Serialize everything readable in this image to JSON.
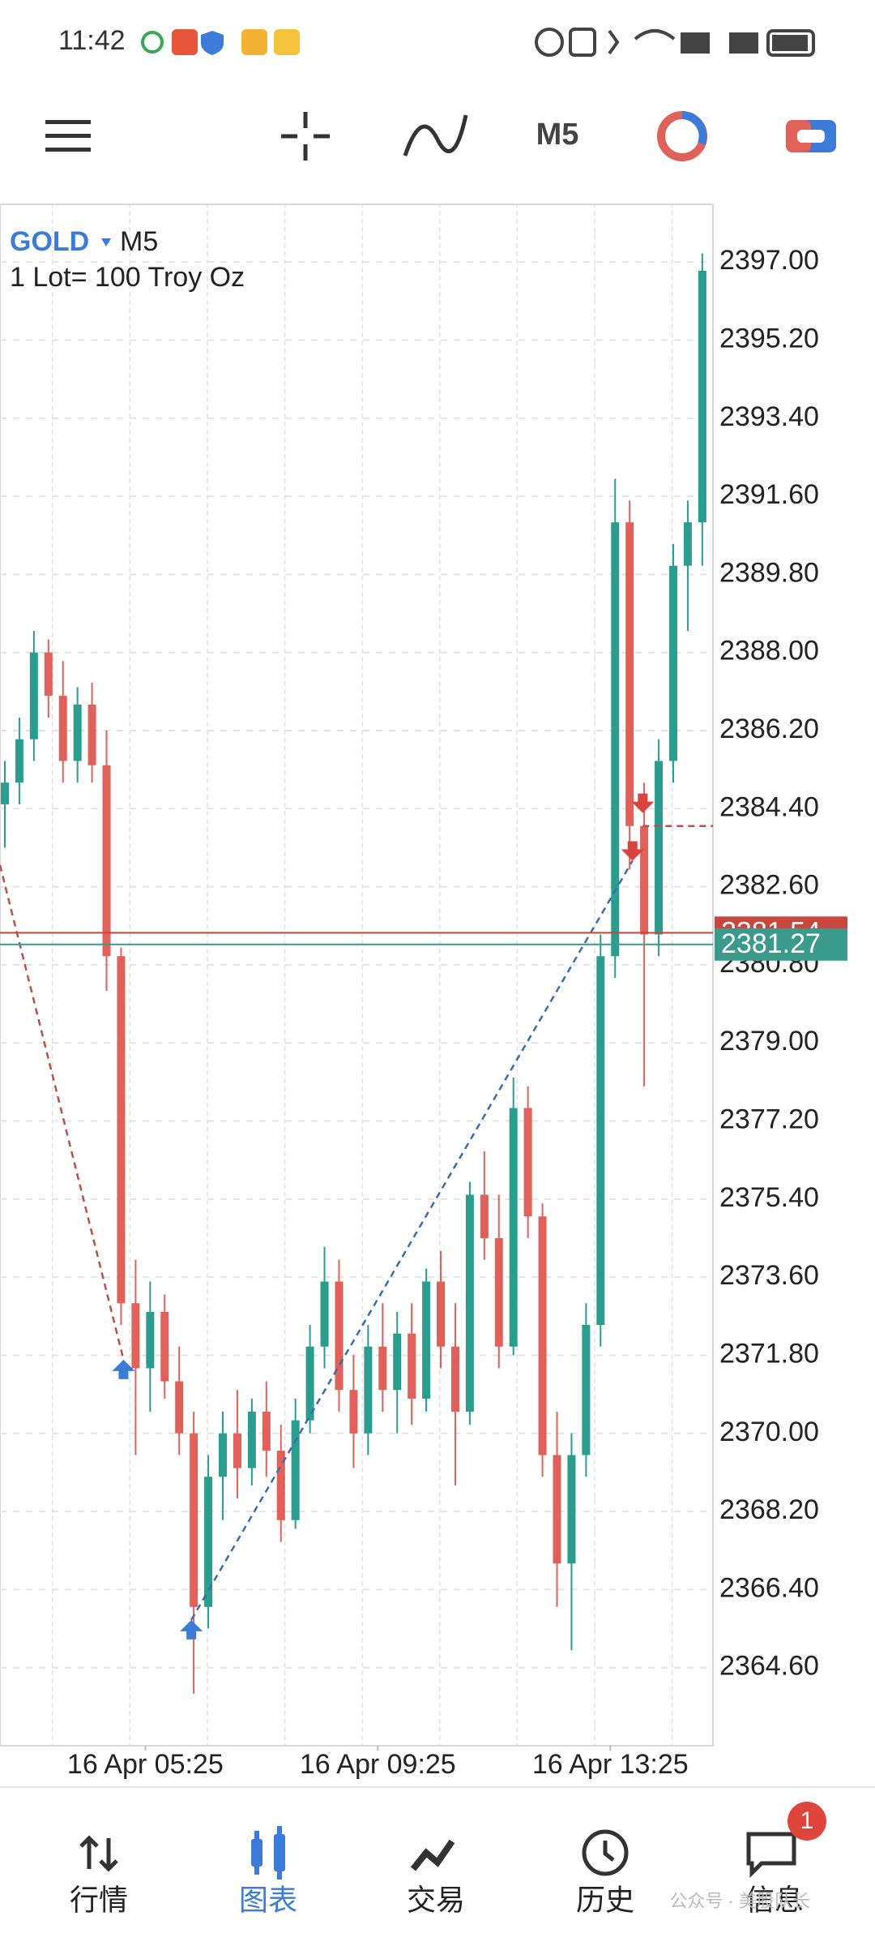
{
  "status_bar": {
    "time": "11:42"
  },
  "toolbar": {
    "timeframe": "M5"
  },
  "chart_data": {
    "type": "candlestick",
    "title": "GOLD",
    "timeframe": "M5",
    "subtitle": "1 Lot= 100 Troy Oz",
    "x": [
      1,
      4,
      7,
      10,
      13,
      16,
      19,
      22,
      25,
      28,
      31,
      34,
      37,
      40,
      43,
      46,
      49,
      52,
      55,
      58,
      61,
      64,
      67,
      70,
      73,
      76,
      79,
      82,
      85,
      88,
      91,
      94,
      97,
      100,
      103,
      106,
      109,
      112,
      115,
      118,
      121,
      124,
      127,
      130,
      133,
      136,
      139,
      142,
      145
    ],
    "open": [
      2384.5,
      2385,
      2386,
      2388,
      2387,
      2385.5,
      2386.8,
      2385.4,
      2381,
      2373,
      2371.5,
      2372.8,
      2371.2,
      2370,
      2366,
      2369,
      2370,
      2369.2,
      2370.5,
      2369.6,
      2368,
      2370.3,
      2372,
      2373.5,
      2371,
      2370,
      2372,
      2371,
      2372.3,
      2370.8,
      2373.5,
      2372,
      2370.5,
      2375.5,
      2374.5,
      2372,
      2377.5,
      2375,
      2369.5,
      2367,
      2369.5,
      2372.5,
      2381,
      2391,
      2384,
      2381.5,
      2385.5,
      2390,
      2391
    ],
    "high": [
      2385.5,
      2386.5,
      2388.5,
      2388.3,
      2387.8,
      2387.2,
      2387.3,
      2386.2,
      2381.2,
      2374,
      2373.5,
      2373.2,
      2372,
      2370.5,
      2369.5,
      2370.5,
      2371,
      2370.8,
      2371.2,
      2370.2,
      2370.8,
      2372.5,
      2374.3,
      2374,
      2371.8,
      2372.5,
      2373,
      2372.8,
      2373,
      2373.8,
      2374.2,
      2373,
      2375.8,
      2376.5,
      2375.5,
      2378.2,
      2378,
      2375.3,
      2370.5,
      2370,
      2373,
      2381.5,
      2392,
      2391.5,
      2385,
      2386,
      2390.5,
      2391.5,
      2397.2
    ],
    "low": [
      2383.5,
      2384.5,
      2385.5,
      2386.5,
      2385,
      2385,
      2385,
      2380.2,
      2372.5,
      2369.5,
      2370.5,
      2370.8,
      2369.5,
      2364,
      2365.5,
      2368,
      2368.5,
      2368.8,
      2369,
      2367.5,
      2367.8,
      2370,
      2371.5,
      2370.5,
      2369.2,
      2369.5,
      2370.5,
      2370,
      2370.2,
      2370.5,
      2371.5,
      2368.8,
      2370.2,
      2374,
      2371.5,
      2371.8,
      2374.5,
      2369,
      2366,
      2365,
      2369,
      2372,
      2380.5,
      2383,
      2378,
      2381,
      2385,
      2388.5,
      2390
    ],
    "close": [
      2385,
      2386,
      2388,
      2387,
      2385.5,
      2386.8,
      2385.4,
      2381,
      2373,
      2371.5,
      2372.8,
      2371.2,
      2370,
      2366,
      2369,
      2370,
      2369.2,
      2370.5,
      2369.6,
      2368,
      2370.3,
      2372,
      2373.5,
      2371,
      2370,
      2372,
      2371,
      2372.3,
      2370.8,
      2373.5,
      2372,
      2370.5,
      2375.5,
      2374.5,
      2372,
      2377.5,
      2375,
      2369.5,
      2367,
      2369.5,
      2372.5,
      2381,
      2391,
      2384,
      2381.5,
      2385.5,
      2390,
      2391,
      2396.8
    ],
    "up_color": "#2a9d8f",
    "down_color": "#e0605a",
    "xlim": [
      0,
      147.2
    ],
    "ylim": [
      2362.8,
      2398.33
    ],
    "xticks": [
      {
        "value": 30,
        "label": "16 Apr 05:25"
      },
      {
        "value": 78,
        "label": "16 Apr 09:25"
      },
      {
        "value": 126,
        "label": "16 Apr 13:25"
      }
    ],
    "yticks": [
      {
        "value": 2397,
        "label": "2397.00"
      },
      {
        "value": 2395.2,
        "label": "2395.20"
      },
      {
        "value": 2393.4,
        "label": "2393.40"
      },
      {
        "value": 2391.6,
        "label": "2391.60"
      },
      {
        "value": 2389.8,
        "label": "2389.80"
      },
      {
        "value": 2388,
        "label": "2388.00"
      },
      {
        "value": 2386.2,
        "label": "2386.20"
      },
      {
        "value": 2384.4,
        "label": "2384.40"
      },
      {
        "value": 2382.6,
        "label": "2382.60"
      },
      {
        "value": 2380.8,
        "label": "2380.80"
      },
      {
        "value": 2379,
        "label": "2379.00"
      },
      {
        "value": 2377.2,
        "label": "2377.20"
      },
      {
        "value": 2375.4,
        "label": "2375.40"
      },
      {
        "value": 2373.6,
        "label": "2373.60"
      },
      {
        "value": 2371.8,
        "label": "2371.80"
      },
      {
        "value": 2370,
        "label": "2370.00"
      },
      {
        "value": 2368.2,
        "label": "2368.20"
      },
      {
        "value": 2366.4,
        "label": "2366.40"
      },
      {
        "value": 2364.6,
        "label": "2364.60"
      }
    ],
    "grid": true,
    "price_lines": [
      {
        "value": 2381.54,
        "color": "#c9463d"
      },
      {
        "value": 2381.27,
        "color": "#3a9a8c"
      }
    ],
    "trades": [
      {
        "x": 25.5,
        "price": 2371.7,
        "color": "#3d7bd9",
        "direction": "up"
      },
      {
        "x": 39.5,
        "price": 2365.7,
        "color": "#3d7bd9",
        "direction": "up"
      },
      {
        "x": 130.6,
        "price": 2383.2,
        "color": "#d9453c",
        "direction": "down"
      },
      {
        "x": 132.7,
        "price": 2384.3,
        "color": "#d9453c",
        "direction": "down"
      }
    ],
    "trade_lines": [
      {
        "x": [
          0,
          25.5
        ],
        "y": [
          2383.1,
          2371.7
        ],
        "color": "#b5524b"
      },
      {
        "x": [
          39.5,
          130.6
        ],
        "y": [
          2365.7,
          2383.2
        ],
        "color": "#3b6ea8"
      },
      {
        "x": [
          132.7,
          147.2
        ],
        "y": [
          2384.0,
          2384.0
        ],
        "color": "#b5524b"
      }
    ]
  },
  "nav": {
    "items": [
      "行情",
      "图表",
      "交易",
      "历史",
      "信息"
    ],
    "badge": "1",
    "active": 1
  },
  "watermark": "公众号 · 美股队长"
}
